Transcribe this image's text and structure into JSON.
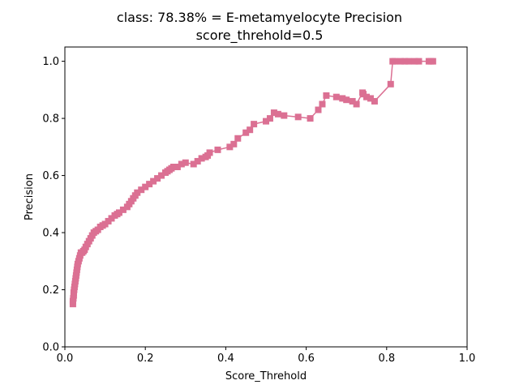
{
  "chart_data": {
    "type": "line",
    "title": "class: 78.38% = E-metamyelocyte Precision",
    "subtitle": "score_threhold=0.5",
    "xlabel": "Score_Threhold",
    "ylabel": "Precision",
    "xlim": [
      0,
      1
    ],
    "ylim": [
      0,
      1.05
    ],
    "x_ticks": [
      "0.0",
      "0.2",
      "0.4",
      "0.6",
      "0.8",
      "1.0"
    ],
    "y_ticks": [
      "0.0",
      "0.2",
      "0.4",
      "0.6",
      "0.8",
      "1.0"
    ],
    "grid": false,
    "marker": "square",
    "series": [
      {
        "color": "#db7093",
        "x": [
          0.02,
          0.02,
          0.021,
          0.022,
          0.022,
          0.023,
          0.024,
          0.025,
          0.026,
          0.027,
          0.028,
          0.029,
          0.03,
          0.031,
          0.032,
          0.034,
          0.036,
          0.038,
          0.04,
          0.043,
          0.046,
          0.049,
          0.052,
          0.056,
          0.06,
          0.064,
          0.068,
          0.072,
          0.077,
          0.082,
          0.088,
          0.094,
          0.1,
          0.108,
          0.116,
          0.124,
          0.13,
          0.135,
          0.145,
          0.155,
          0.16,
          0.165,
          0.17,
          0.175,
          0.18,
          0.19,
          0.2,
          0.21,
          0.22,
          0.23,
          0.24,
          0.25,
          0.255,
          0.26,
          0.265,
          0.27,
          0.28,
          0.29,
          0.3,
          0.32,
          0.33,
          0.34,
          0.35,
          0.355,
          0.36,
          0.38,
          0.41,
          0.42,
          0.43,
          0.45,
          0.46,
          0.47,
          0.5,
          0.51,
          0.52,
          0.53,
          0.545,
          0.58,
          0.61,
          0.63,
          0.64,
          0.65,
          0.675,
          0.69,
          0.7,
          0.715,
          0.725,
          0.74,
          0.742,
          0.75,
          0.76,
          0.77,
          0.81,
          0.815,
          0.82,
          0.835,
          0.845,
          0.855,
          0.87,
          0.88,
          0.905,
          0.91,
          0.915
        ],
        "y": [
          0.15,
          0.16,
          0.17,
          0.18,
          0.19,
          0.2,
          0.21,
          0.22,
          0.23,
          0.24,
          0.25,
          0.26,
          0.27,
          0.28,
          0.29,
          0.3,
          0.31,
          0.32,
          0.33,
          0.33,
          0.335,
          0.34,
          0.35,
          0.36,
          0.37,
          0.38,
          0.39,
          0.4,
          0.405,
          0.41,
          0.42,
          0.425,
          0.43,
          0.44,
          0.45,
          0.46,
          0.465,
          0.47,
          0.48,
          0.49,
          0.5,
          0.51,
          0.52,
          0.53,
          0.54,
          0.55,
          0.56,
          0.57,
          0.58,
          0.59,
          0.6,
          0.61,
          0.615,
          0.62,
          0.625,
          0.63,
          0.63,
          0.64,
          0.645,
          0.64,
          0.65,
          0.66,
          0.665,
          0.67,
          0.68,
          0.69,
          0.7,
          0.71,
          0.73,
          0.75,
          0.76,
          0.78,
          0.79,
          0.8,
          0.82,
          0.815,
          0.81,
          0.805,
          0.8,
          0.83,
          0.85,
          0.88,
          0.875,
          0.87,
          0.865,
          0.86,
          0.85,
          0.89,
          0.885,
          0.875,
          0.87,
          0.86,
          0.92,
          1.0,
          1.0,
          1.0,
          1.0,
          1.0,
          1.0,
          1.0,
          1.0,
          1.0,
          1.0
        ]
      }
    ]
  }
}
